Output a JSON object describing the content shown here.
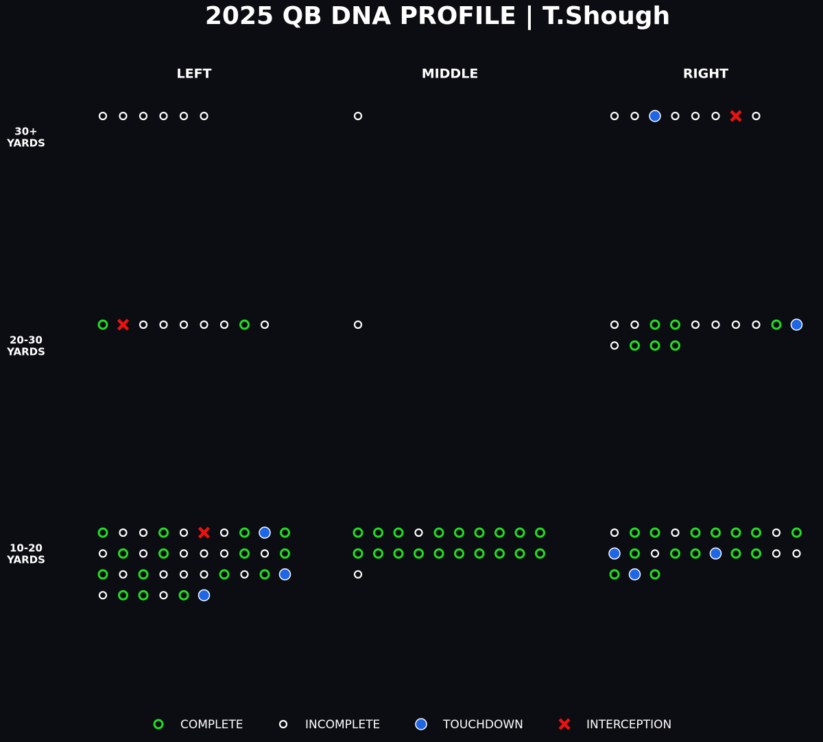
{
  "chart_data": {
    "type": "dot-grid",
    "title": "2025 QB DNA PROFILE | T.Shough",
    "columns": [
      "LEFT",
      "MIDDLE",
      "RIGHT"
    ],
    "rows": [
      [
        "30+",
        "YARDS"
      ],
      [
        "20-30",
        "YARDS"
      ],
      [
        "10-20",
        "YARDS"
      ]
    ],
    "legend": [
      {
        "name": "COMPLETE",
        "color": "#22dd22"
      },
      {
        "name": "INCOMPLETE",
        "color": "#ffffff"
      },
      {
        "name": "TOUCHDOWN",
        "color": "#1f66e5"
      },
      {
        "name": "INTERCEPTION",
        "color": "#ee1111"
      }
    ],
    "zones": [
      [
        [
          "INCOMPLETE",
          "INCOMPLETE",
          "INCOMPLETE",
          "INCOMPLETE",
          "INCOMPLETE",
          "INCOMPLETE"
        ],
        [
          "INCOMPLETE"
        ],
        [
          "INCOMPLETE",
          "INCOMPLETE",
          "TOUCHDOWN",
          "INCOMPLETE",
          "INCOMPLETE",
          "INCOMPLETE",
          "INTERCEPTION",
          "INCOMPLETE"
        ]
      ],
      [
        [
          "COMPLETE",
          "INTERCEPTION",
          "INCOMPLETE",
          "INCOMPLETE",
          "INCOMPLETE",
          "INCOMPLETE",
          "INCOMPLETE",
          "COMPLETE",
          "INCOMPLETE"
        ],
        [
          "INCOMPLETE"
        ],
        [
          "INCOMPLETE",
          "INCOMPLETE",
          "COMPLETE",
          "COMPLETE",
          "INCOMPLETE",
          "INCOMPLETE",
          "INCOMPLETE",
          "INCOMPLETE",
          "COMPLETE",
          "TOUCHDOWN",
          "INCOMPLETE",
          "COMPLETE",
          "COMPLETE",
          "COMPLETE"
        ]
      ],
      [
        [
          "COMPLETE",
          "INCOMPLETE",
          "INCOMPLETE",
          "COMPLETE",
          "INCOMPLETE",
          "INTERCEPTION",
          "INCOMPLETE",
          "COMPLETE",
          "TOUCHDOWN",
          "COMPLETE",
          "INCOMPLETE",
          "COMPLETE",
          "INCOMPLETE",
          "COMPLETE",
          "INCOMPLETE",
          "INCOMPLETE",
          "INCOMPLETE",
          "COMPLETE",
          "INCOMPLETE",
          "COMPLETE",
          "COMPLETE",
          "INCOMPLETE",
          "COMPLETE",
          "INCOMPLETE",
          "INCOMPLETE",
          "INCOMPLETE",
          "COMPLETE",
          "INCOMPLETE",
          "COMPLETE",
          "TOUCHDOWN",
          "INCOMPLETE",
          "COMPLETE",
          "COMPLETE",
          "INCOMPLETE",
          "COMPLETE",
          "TOUCHDOWN"
        ],
        [
          "COMPLETE",
          "COMPLETE",
          "COMPLETE",
          "INCOMPLETE",
          "COMPLETE",
          "COMPLETE",
          "COMPLETE",
          "COMPLETE",
          "COMPLETE",
          "COMPLETE",
          "COMPLETE",
          "COMPLETE",
          "COMPLETE",
          "COMPLETE",
          "COMPLETE",
          "COMPLETE",
          "COMPLETE",
          "COMPLETE",
          "COMPLETE",
          "COMPLETE",
          "INCOMPLETE"
        ],
        [
          "INCOMPLETE",
          "COMPLETE",
          "COMPLETE",
          "INCOMPLETE",
          "COMPLETE",
          "COMPLETE",
          "COMPLETE",
          "COMPLETE",
          "INCOMPLETE",
          "COMPLETE",
          "TOUCHDOWN",
          "COMPLETE",
          "INCOMPLETE",
          "COMPLETE",
          "COMPLETE",
          "TOUCHDOWN",
          "COMPLETE",
          "COMPLETE",
          "INCOMPLETE",
          "INCOMPLETE",
          "COMPLETE",
          "TOUCHDOWN",
          "COMPLETE"
        ]
      ]
    ]
  }
}
